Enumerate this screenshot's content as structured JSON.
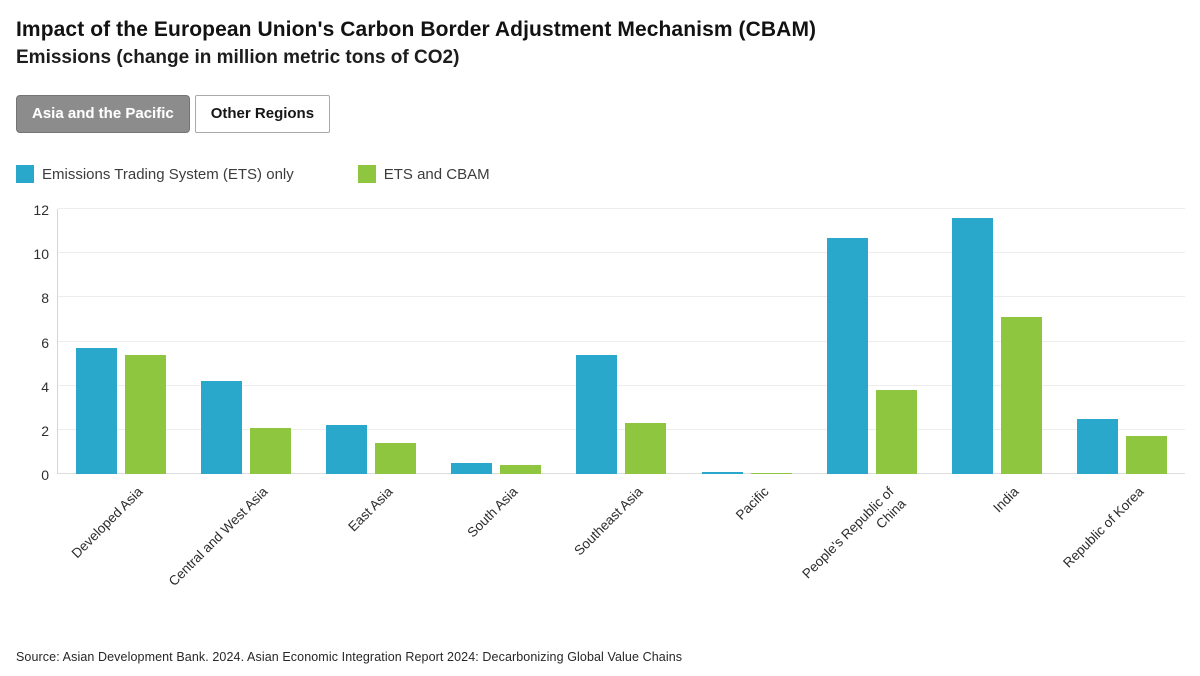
{
  "header": {
    "title": "Impact of the European Union's Carbon Border Adjustment Mechanism (CBAM)",
    "subtitle": "Emissions (change in million metric tons of CO2)"
  },
  "tabs": [
    {
      "label": "Asia and the Pacific",
      "selected": true
    },
    {
      "label": "Other Regions",
      "selected": false
    }
  ],
  "legend": [
    {
      "label": "Emissions Trading System (ETS) only",
      "color": "#29A8CC"
    },
    {
      "label": "ETS and CBAM",
      "color": "#8FC63F"
    }
  ],
  "chart_data": {
    "type": "bar",
    "title": "Impact of the European Union's Carbon Border Adjustment Mechanism (CBAM)",
    "subtitle": "Emissions (change in million metric tons of CO2)",
    "categories": [
      "Developed Asia",
      "Central and West Asia",
      "East Asia",
      "South Asia",
      "Southeast Asia",
      "Pacific",
      "People's Republic of\nChina",
      "India",
      "Republic of Korea"
    ],
    "series": [
      {
        "name": "Emissions Trading System (ETS) only",
        "color": "#29A8CC",
        "values": [
          5.7,
          4.2,
          2.2,
          0.5,
          5.4,
          0.1,
          10.7,
          11.6,
          2.5
        ]
      },
      {
        "name": "ETS and CBAM",
        "color": "#8FC63F",
        "values": [
          5.4,
          2.1,
          1.4,
          0.4,
          2.3,
          0.05,
          3.8,
          7.1,
          1.7
        ]
      }
    ],
    "xlabel": "",
    "ylabel": "",
    "ylim": [
      0,
      12
    ],
    "yticks": [
      0,
      2,
      4,
      6,
      8,
      10,
      12
    ],
    "grid": true,
    "legend_position": "top-left"
  },
  "source": "Source: Asian Development Bank. 2024. Asian Economic Integration Report 2024: Decarbonizing Global Value Chains"
}
